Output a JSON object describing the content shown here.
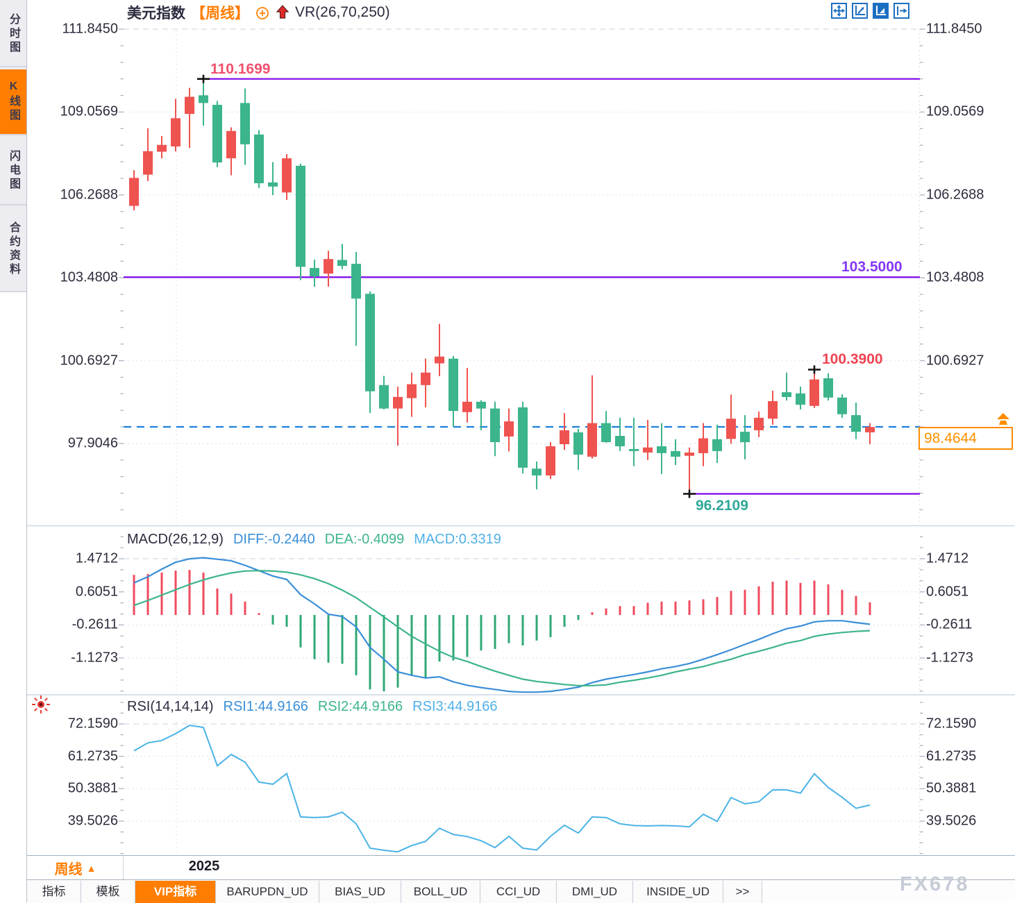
{
  "sidebar": {
    "tabs": [
      {
        "label": "分时图",
        "active": false
      },
      {
        "label": "K线图",
        "active": true
      },
      {
        "label": "闪电图",
        "active": false
      },
      {
        "label": "合约资料",
        "active": false
      }
    ]
  },
  "header": {
    "symbol": "美元指数",
    "period_tag": "【周线】",
    "overlay_indicator": "VR(26,70,250)",
    "icons": [
      "link-circle-plus-icon",
      "up-arrow-icon"
    ]
  },
  "toolbar": {
    "icons": [
      "move-crosshair",
      "axis-zoom",
      "axis-play",
      "pane-shift"
    ],
    "active_index": 2
  },
  "price_axis_labels": [
    "111.8450",
    "109.0569",
    "106.2688",
    "103.4808",
    "100.6927",
    "97.9046"
  ],
  "annotations": {
    "resistance": {
      "value": "110.1699",
      "color": "#f0506e"
    },
    "mid": {
      "value": "103.5000",
      "color": "#8438f5"
    },
    "support": {
      "value": "96.2109",
      "color": "#2fa89a"
    },
    "swing_high": {
      "value": "100.3900",
      "color": "#f04352"
    },
    "last_price_tag": {
      "value": "98.4644",
      "color": "#ff8c00"
    }
  },
  "macd_panel": {
    "title": "MACD(26,12,9)",
    "diff_label": "DIFF:-0.2440",
    "dea_label": "DEA:-0.4099",
    "macd_label": "MACD:0.3319",
    "axis_labels": [
      "1.4712",
      "0.6051",
      "-0.2611",
      "-1.1273"
    ]
  },
  "rsi_panel": {
    "title": "RSI(14,14,14)",
    "rsi1_label": "RSI1:44.9166",
    "rsi2_label": "RSI2:44.9166",
    "rsi3_label": "RSI3:44.9166",
    "axis_labels": [
      "72.1590",
      "61.2735",
      "50.3881",
      "39.5026"
    ]
  },
  "x_axis": {
    "year_label": "2025",
    "period_label": "周线"
  },
  "bottom_tabs": [
    {
      "label": "指标",
      "active": false
    },
    {
      "label": "模板",
      "active": false
    },
    {
      "label": "VIP指标",
      "active": true
    },
    {
      "label": "BARUPDN_UD",
      "active": false
    },
    {
      "label": "BIAS_UD",
      "active": false
    },
    {
      "label": "BOLL_UD",
      "active": false
    },
    {
      "label": "CCI_UD",
      "active": false
    },
    {
      "label": "DMI_UD",
      "active": false
    },
    {
      "label": "INSIDE_UD",
      "active": false
    },
    {
      "label": ">>",
      "active": false
    }
  ],
  "watermark": "FX678",
  "colors": {
    "accent_orange": "#ff7d00",
    "candle_up": "#ef5350",
    "candle_down": "#3cb48c",
    "trend_line": "#7d05e8",
    "dashed_price_line": "#1b7fdd",
    "macd_bar_up": "#ef4b5e",
    "macd_bar_down": "#2fa874",
    "diff_line": "#3a8ed8",
    "dea_line": "#3cb48c",
    "rsi_line": "#4ab3e6",
    "grid": "#e2e7ee",
    "axis_text": "#2d2d3d"
  },
  "chart_data": [
    {
      "type": "candlestick",
      "title": "美元指数 周线",
      "ylim": [
        95.5,
        112.5
      ],
      "y_ticks": [
        111.845,
        109.0569,
        106.2688,
        103.4808,
        100.6927,
        97.9046
      ],
      "x_tick_label": "2025",
      "ohlc": [
        [
          105.9,
          107.1,
          105.75,
          106.84
        ],
        [
          106.95,
          108.51,
          106.73,
          107.74
        ],
        [
          107.72,
          108.25,
          107.5,
          107.95
        ],
        [
          107.9,
          109.5,
          107.73,
          108.85
        ],
        [
          108.99,
          109.87,
          107.85,
          109.57
        ],
        [
          109.62,
          110.17,
          108.6,
          109.36
        ],
        [
          109.3,
          109.43,
          107.2,
          107.36
        ],
        [
          107.5,
          108.54,
          106.93,
          108.42
        ],
        [
          109.36,
          109.85,
          107.28,
          107.97
        ],
        [
          108.3,
          108.45,
          106.5,
          106.66
        ],
        [
          106.69,
          107.37,
          106.26,
          106.55
        ],
        [
          106.35,
          107.64,
          106.1,
          107.5
        ],
        [
          107.25,
          107.32,
          103.4,
          103.85
        ],
        [
          103.81,
          104.09,
          103.18,
          103.53
        ],
        [
          103.62,
          104.39,
          103.18,
          104.11
        ],
        [
          104.08,
          104.62,
          103.77,
          103.88
        ],
        [
          103.95,
          104.35,
          101.19,
          102.78
        ],
        [
          102.94,
          103.02,
          98.93,
          99.66
        ],
        [
          99.87,
          100.18,
          99.05,
          99.08
        ],
        [
          99.08,
          99.82,
          97.83,
          99.47
        ],
        [
          99.43,
          100.29,
          98.8,
          99.9
        ],
        [
          99.87,
          100.76,
          99.12,
          100.29
        ],
        [
          100.6,
          101.93,
          100.17,
          100.83
        ],
        [
          100.76,
          100.85,
          98.46,
          99.0
        ],
        [
          98.96,
          100.45,
          98.61,
          99.31
        ],
        [
          99.31,
          99.36,
          98.35,
          99.08
        ],
        [
          99.08,
          99.31,
          97.48,
          97.95
        ],
        [
          98.14,
          99.08,
          97.64,
          98.65
        ],
        [
          99.12,
          99.31,
          96.9,
          97.09
        ],
        [
          97.06,
          97.3,
          96.36,
          96.83
        ],
        [
          96.83,
          97.95,
          96.71,
          97.81
        ],
        [
          97.88,
          98.93,
          97.69,
          98.35
        ],
        [
          98.28,
          98.4,
          97.02,
          97.53
        ],
        [
          97.46,
          100.2,
          97.4,
          98.59
        ],
        [
          98.59,
          99.0,
          97.93,
          97.95
        ],
        [
          98.16,
          98.77,
          97.65,
          97.81
        ],
        [
          97.72,
          98.77,
          97.14,
          97.65
        ],
        [
          97.6,
          98.7,
          97.35,
          97.77
        ],
        [
          97.81,
          98.59,
          96.88,
          97.58
        ],
        [
          97.65,
          98.05,
          97.18,
          97.46
        ],
        [
          97.49,
          97.77,
          96.21,
          97.6
        ],
        [
          97.58,
          98.59,
          97.14,
          98.08
        ],
        [
          98.05,
          98.54,
          97.25,
          97.65
        ],
        [
          98.06,
          99.55,
          97.9,
          98.74
        ],
        [
          98.3,
          98.86,
          97.37,
          97.95
        ],
        [
          98.35,
          98.98,
          98.12,
          98.77
        ],
        [
          98.74,
          99.68,
          98.54,
          99.33
        ],
        [
          99.63,
          100.29,
          99.35,
          99.47
        ],
        [
          99.59,
          99.82,
          99.05,
          99.21
        ],
        [
          99.17,
          100.39,
          99.1,
          100.06
        ],
        [
          100.1,
          100.27,
          99.35,
          99.45
        ],
        [
          99.45,
          99.56,
          98.77,
          98.89
        ],
        [
          98.86,
          99.28,
          98.05,
          98.3
        ],
        [
          98.28,
          98.59,
          97.88,
          98.46
        ]
      ],
      "hlines": [
        {
          "value": 110.1699,
          "from_index": 5,
          "label": "110.1699"
        },
        {
          "value": 103.5,
          "from_index": 0,
          "label": "103.5000"
        },
        {
          "value": 96.2109,
          "from_index": 40,
          "label": "96.2109"
        }
      ],
      "dashed_line_value": 98.4644,
      "markers": [
        {
          "index": 5,
          "value": 110.1699,
          "type": "high"
        },
        {
          "index": 40,
          "value": 96.2109,
          "type": "low"
        },
        {
          "index": 49,
          "value": 100.39,
          "type": "high"
        }
      ]
    },
    {
      "type": "bar",
      "name": "MACD",
      "y_ticks": [
        1.4712,
        0.6051,
        -0.2611,
        -1.1273
      ],
      "hist": [
        1.05,
        1.07,
        1.11,
        1.16,
        1.18,
        1.11,
        0.69,
        0.56,
        0.35,
        0.05,
        -0.25,
        -0.31,
        -0.85,
        -1.16,
        -1.25,
        -1.28,
        -1.58,
        -1.95,
        -2.0,
        -1.9,
        -1.58,
        -1.65,
        -1.22,
        -1.19,
        -1.1,
        -0.93,
        -0.89,
        -0.74,
        -0.8,
        -0.67,
        -0.58,
        -0.31,
        -0.13,
        0.07,
        0.17,
        0.23,
        0.23,
        0.32,
        0.35,
        0.35,
        0.38,
        0.41,
        0.47,
        0.63,
        0.66,
        0.75,
        0.87,
        0.9,
        0.84,
        0.9,
        0.8,
        0.66,
        0.5,
        0.33
      ],
      "series": [
        {
          "name": "DIFF",
          "values": [
            0.84,
            1.0,
            1.2,
            1.38,
            1.47,
            1.5,
            1.46,
            1.42,
            1.3,
            1.16,
            1.02,
            0.93,
            0.53,
            0.29,
            0.02,
            -0.04,
            -0.31,
            -0.85,
            -1.16,
            -1.49,
            -1.58,
            -1.65,
            -1.62,
            -1.75,
            -1.84,
            -1.9,
            -1.95,
            -2.0,
            -2.02,
            -2.02,
            -2.0,
            -1.95,
            -1.89,
            -1.77,
            -1.68,
            -1.62,
            -1.56,
            -1.49,
            -1.41,
            -1.35,
            -1.27,
            -1.16,
            -1.04,
            -0.91,
            -0.77,
            -0.64,
            -0.49,
            -0.36,
            -0.29,
            -0.18,
            -0.15,
            -0.15,
            -0.2,
            -0.244
          ]
        },
        {
          "name": "DEA",
          "values": [
            0.25,
            0.38,
            0.52,
            0.66,
            0.8,
            0.92,
            1.02,
            1.1,
            1.15,
            1.16,
            1.15,
            1.12,
            1.05,
            0.95,
            0.82,
            0.65,
            0.45,
            0.2,
            -0.05,
            -0.31,
            -0.56,
            -0.76,
            -0.95,
            -1.11,
            -1.22,
            -1.35,
            -1.47,
            -1.58,
            -1.68,
            -1.74,
            -1.78,
            -1.82,
            -1.85,
            -1.85,
            -1.83,
            -1.76,
            -1.71,
            -1.65,
            -1.58,
            -1.49,
            -1.42,
            -1.35,
            -1.25,
            -1.16,
            -1.04,
            -0.95,
            -0.85,
            -0.74,
            -0.67,
            -0.56,
            -0.5,
            -0.46,
            -0.43,
            -0.41
          ]
        }
      ]
    },
    {
      "type": "line",
      "name": "RSI",
      "y_ticks": [
        72.159,
        61.2735,
        50.3881,
        39.5026
      ],
      "series": [
        {
          "name": "RSI1",
          "values": [
            63.1,
            65.8,
            66.6,
            68.9,
            71.7,
            71.0,
            58.1,
            61.9,
            59.3,
            52.6,
            51.9,
            55.5,
            40.9,
            40.7,
            40.9,
            42.5,
            38.6,
            30.4,
            29.7,
            29.2,
            31.3,
            32.7,
            37.1,
            35.0,
            34.3,
            32.9,
            30.6,
            34.4,
            30.4,
            29.8,
            34.4,
            38.1,
            35.5,
            40.9,
            40.7,
            38.6,
            38.0,
            37.9,
            38.0,
            37.9,
            37.6,
            41.8,
            39.4,
            47.4,
            45.3,
            46.0,
            50.0,
            50.0,
            48.9,
            55.4,
            50.8,
            47.5,
            43.8,
            44.9
          ]
        }
      ]
    }
  ]
}
